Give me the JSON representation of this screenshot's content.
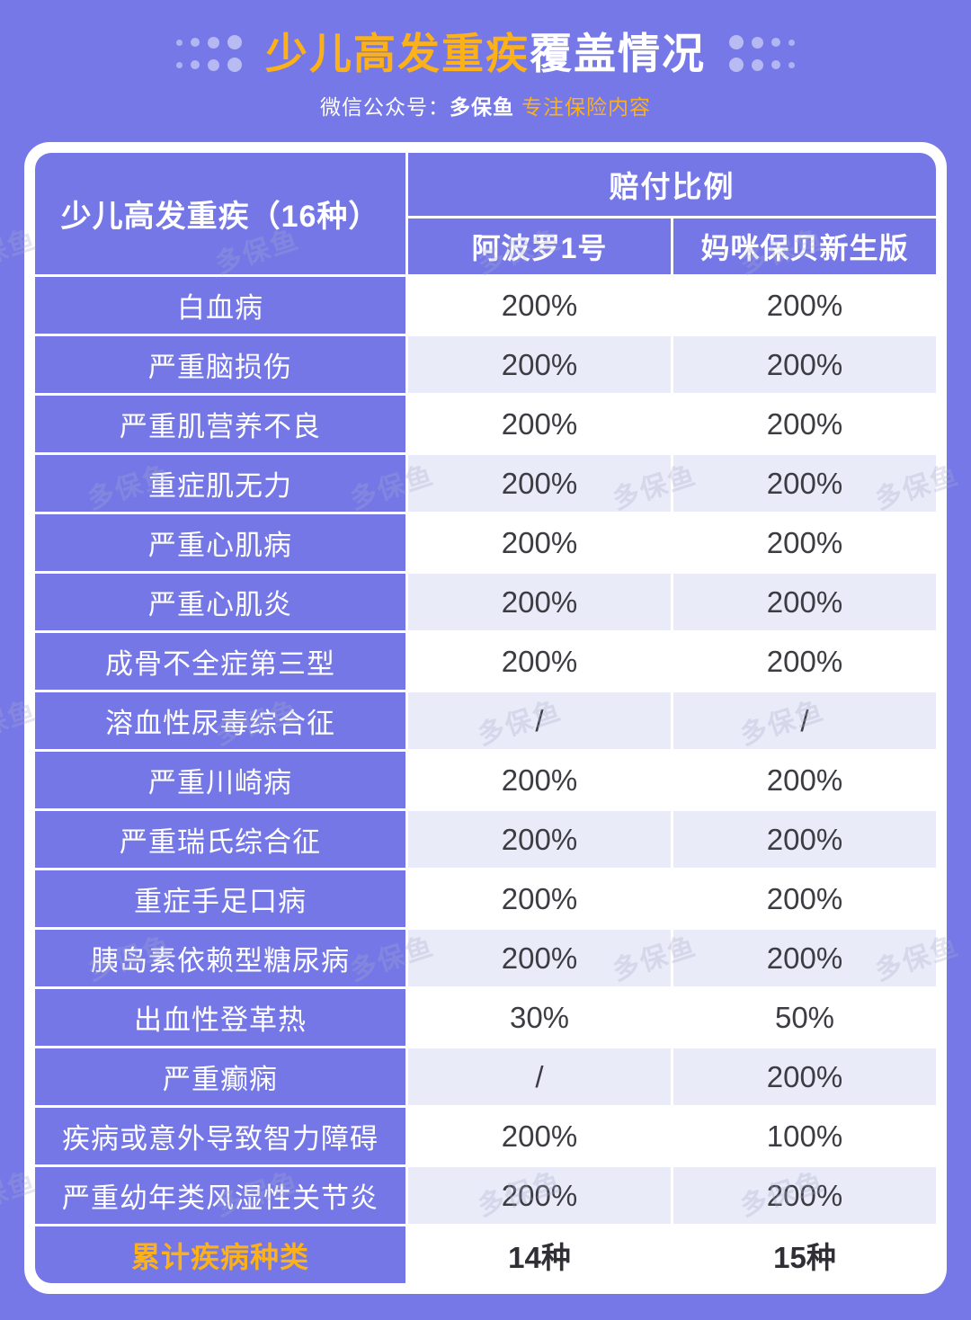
{
  "page": {
    "title_highlight": "少儿高发重疾",
    "title_rest": "覆盖情况",
    "subtitle_prefix": "微信公众号：",
    "subtitle_brand": "多保鱼",
    "subtitle_tagline": "专注保险内容"
  },
  "colors": {
    "background_purple": "#7678E8",
    "cell_purple": "#7577E7",
    "light_row": "#EAEBF8",
    "accent_yellow": "#FBB117",
    "value_text": "#3C3C43",
    "white": "#FFFFFF"
  },
  "watermark": {
    "text": "多保鱼"
  },
  "table": {
    "corner_header": "少儿高发重疾（16种）",
    "group_header": "赔付比例",
    "columns": [
      "阿波罗1号",
      "妈咪保贝新生版"
    ],
    "rows": [
      {
        "name": "白血病",
        "v1": "200%",
        "v2": "200%"
      },
      {
        "name": "严重脑损伤",
        "v1": "200%",
        "v2": "200%"
      },
      {
        "name": "严重肌营养不良",
        "v1": "200%",
        "v2": "200%"
      },
      {
        "name": "重症肌无力",
        "v1": "200%",
        "v2": "200%"
      },
      {
        "name": "严重心肌病",
        "v1": "200%",
        "v2": "200%"
      },
      {
        "name": "严重心肌炎",
        "v1": "200%",
        "v2": "200%"
      },
      {
        "name": "成骨不全症第三型",
        "v1": "200%",
        "v2": "200%"
      },
      {
        "name": "溶血性尿毒综合征",
        "v1": "/",
        "v2": "/"
      },
      {
        "name": "严重川崎病",
        "v1": "200%",
        "v2": "200%"
      },
      {
        "name": "严重瑞氏综合征",
        "v1": "200%",
        "v2": "200%"
      },
      {
        "name": "重症手足口病",
        "v1": "200%",
        "v2": "200%"
      },
      {
        "name": "胰岛素依赖型糖尿病",
        "v1": "200%",
        "v2": "200%"
      },
      {
        "name": "出血性登革热",
        "v1": "30%",
        "v2": "50%"
      },
      {
        "name": "严重癫痫",
        "v1": "/",
        "v2": "200%"
      },
      {
        "name": "疾病或意外导致智力障碍",
        "v1": "200%",
        "v2": "100%"
      },
      {
        "name": "严重幼年类风湿性关节炎",
        "v1": "200%",
        "v2": "200%"
      }
    ],
    "summary": {
      "name": "累计疾病种类",
      "v1": "14种",
      "v2": "15种"
    }
  }
}
